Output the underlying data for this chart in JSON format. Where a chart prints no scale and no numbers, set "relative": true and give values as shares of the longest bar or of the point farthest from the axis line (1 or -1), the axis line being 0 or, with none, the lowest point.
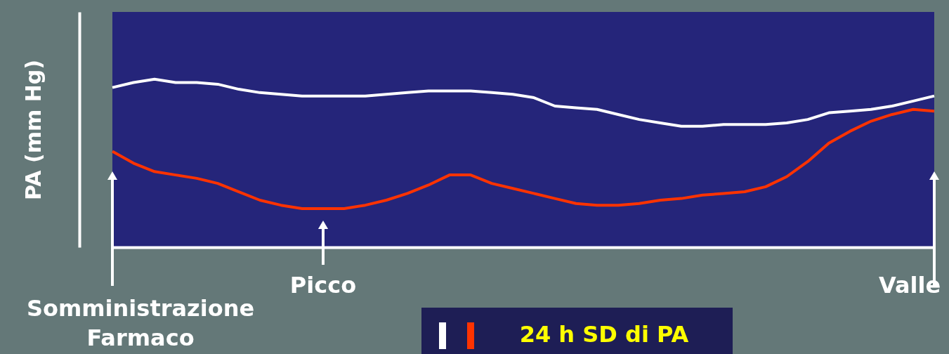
{
  "chart_data": {
    "type": "line",
    "relative": true,
    "ylabel": "PA (mm Hg)",
    "categories": [
      null,
      null,
      null,
      null,
      null,
      null,
      null,
      null,
      null,
      null,
      null,
      null,
      null,
      null,
      null,
      null,
      null,
      null,
      null,
      null,
      null,
      null,
      null,
      null,
      null,
      null,
      null,
      null,
      null,
      null,
      null,
      null,
      null,
      null,
      null,
      null,
      null,
      null,
      null,
      null
    ],
    "series": [
      {
        "color": "#ffffff",
        "values": [
          0.95,
          0.98,
          1.0,
          0.98,
          0.98,
          0.97,
          0.94,
          0.92,
          0.91,
          0.9,
          0.9,
          0.9,
          0.9,
          0.91,
          0.92,
          0.93,
          0.93,
          0.93,
          0.92,
          0.91,
          0.89,
          0.84,
          0.83,
          0.82,
          0.79,
          0.76,
          0.74,
          0.72,
          0.72,
          0.73,
          0.73,
          0.73,
          0.74,
          0.76,
          0.8,
          0.81,
          0.82,
          0.84,
          0.87,
          0.9
        ]
      },
      {
        "color": "#ff3300",
        "values": [
          0.57,
          0.5,
          0.45,
          0.43,
          0.41,
          0.38,
          0.33,
          0.28,
          0.25,
          0.23,
          0.23,
          0.23,
          0.25,
          0.28,
          0.32,
          0.37,
          0.43,
          0.43,
          0.38,
          0.35,
          0.32,
          0.29,
          0.26,
          0.25,
          0.25,
          0.26,
          0.28,
          0.29,
          0.31,
          0.32,
          0.33,
          0.36,
          0.42,
          0.51,
          0.62,
          0.69,
          0.75,
          0.79,
          0.82,
          0.81
        ]
      }
    ],
    "annotations": [
      "Picco",
      "Valle",
      "Somministrazione Farmaco",
      "24 h SD di PA"
    ],
    "grid": false,
    "marker": "none",
    "line_style": "solid"
  }
}
